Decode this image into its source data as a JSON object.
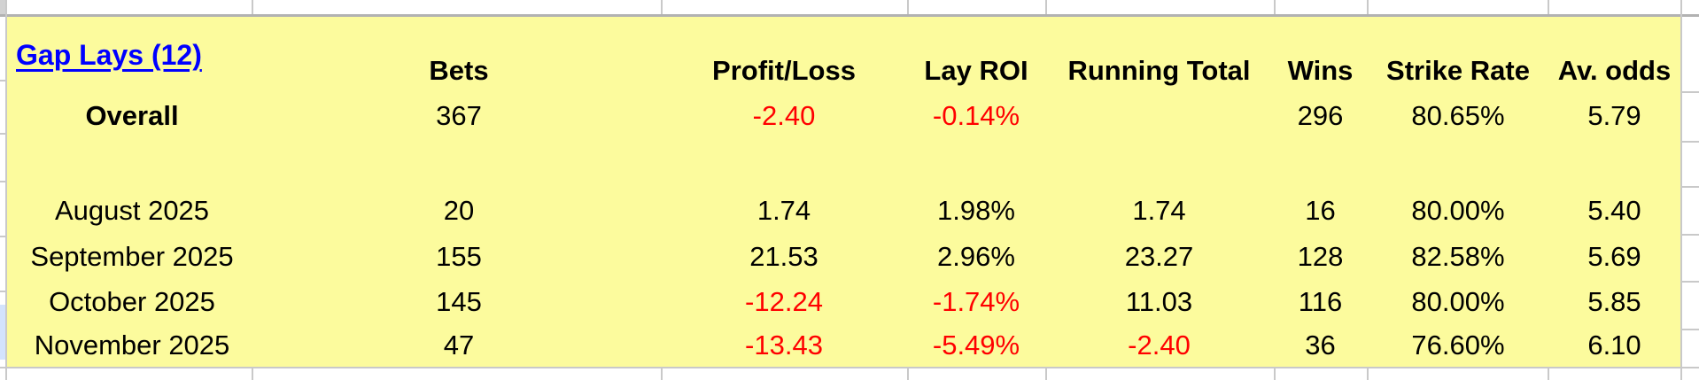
{
  "sheet": {
    "title_link": "Gap Lays (12)",
    "columns": [
      "Bets",
      "Profit/Loss",
      "Lay ROI",
      "Running Total",
      "Wins",
      "Strike Rate",
      "Av. odds"
    ],
    "rows": [
      {
        "label": "Overall",
        "bold": true,
        "blank": false,
        "values": [
          "367",
          "-2.40",
          "-0.14%",
          "",
          "296",
          "80.65%",
          "5.79"
        ]
      },
      {
        "label": "",
        "bold": false,
        "blank": true,
        "values": [
          "",
          "",
          "",
          "",
          "",
          "",
          ""
        ]
      },
      {
        "label": "August 2025",
        "bold": false,
        "blank": false,
        "values": [
          "20",
          "1.74",
          "1.98%",
          "1.74",
          "16",
          "80.00%",
          "5.40"
        ]
      },
      {
        "label": "September 2025",
        "bold": false,
        "blank": false,
        "values": [
          "155",
          "21.53",
          "2.96%",
          "23.27",
          "128",
          "82.58%",
          "5.69"
        ]
      },
      {
        "label": "October 2025",
        "bold": false,
        "blank": false,
        "values": [
          "145",
          "-12.24",
          "-1.74%",
          "11.03",
          "116",
          "80.00%",
          "5.85"
        ]
      },
      {
        "label": "November 2025",
        "bold": false,
        "blank": false,
        "values": [
          "47",
          "-13.43",
          "-5.49%",
          "-2.40",
          "36",
          "76.60%",
          "6.10"
        ]
      }
    ],
    "colors": {
      "cell_fill": "#fcfb9d",
      "negative_text": "#ff0000",
      "default_text": "#000000",
      "link_text": "#0000ff",
      "gridline": "#c9c9c9",
      "strip_border": "#b2b2b2",
      "selection_band": "#d3e3fd",
      "background": "#ffffff"
    }
  }
}
